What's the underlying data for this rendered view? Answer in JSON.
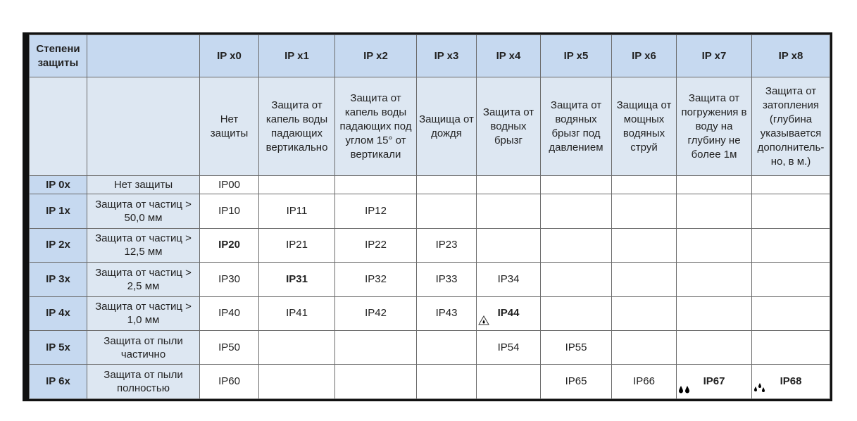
{
  "header": {
    "corner": "Степени защиты",
    "blank": "",
    "columns": [
      "IP x0",
      "IP x1",
      "IP x2",
      "IP x3",
      "IP x4",
      "IP x5",
      "IP x6",
      "IP x7",
      "IP x8"
    ]
  },
  "descriptions": [
    "Нет защиты",
    "Защита от капель воды падающих вертикально",
    "Защита от капель воды падающих под углом 15° от вертикали",
    "Защища от дождя",
    "Защита от водных брызг",
    "Защита от водяных брызг под давлением",
    "Защища от мощных водяных струй",
    "Защита от погружения в воду на глубину не более 1м",
    "Защита от затопления (глубина указывается дополнитель-но, в м.)"
  ],
  "rows": [
    {
      "code": "IP 0x",
      "desc": "Нет защиты",
      "cells": [
        "IP00",
        "",
        "",
        "",
        "",
        "",
        "",
        "",
        ""
      ]
    },
    {
      "code": "IP 1x",
      "desc": "Защита от частиц > 50,0 мм",
      "cells": [
        "IP10",
        "IP11",
        "IP12",
        "",
        "",
        "",
        "",
        "",
        ""
      ]
    },
    {
      "code": "IP 2x",
      "desc": "Защита от частиц > 12,5 мм",
      "cells": [
        "IP20",
        "IP21",
        "IP22",
        "IP23",
        "",
        "",
        "",
        "",
        ""
      ]
    },
    {
      "code": "IP 3x",
      "desc": "Защита от частиц > 2,5 мм",
      "cells": [
        "IP30",
        "IP31",
        "IP32",
        "IP33",
        "IP34",
        "",
        "",
        "",
        ""
      ]
    },
    {
      "code": "IP 4x",
      "desc": "Защита от частиц > 1,0 мм",
      "cells": [
        "IP40",
        "IP41",
        "IP42",
        "IP43",
        "IP44",
        "",
        "",
        "",
        ""
      ]
    },
    {
      "code": "IP 5x",
      "desc": "Защита от пыли частично",
      "cells": [
        "IP50",
        "",
        "",
        "",
        "IP54",
        "IP55",
        "",
        "",
        ""
      ]
    },
    {
      "code": "IP 6x",
      "desc": "Защита от пыли полностью",
      "cells": [
        "IP60",
        "",
        "",
        "",
        "",
        "IP65",
        "IP66",
        "IP67",
        "IP68"
      ]
    }
  ],
  "bold_cells": [
    "IP20",
    "IP31",
    "IP44",
    "IP67",
    "IP68"
  ],
  "icons": {
    "IP44": "warning-drop-icon",
    "IP67": "two-drops-icon",
    "IP68": "three-drops-icon"
  }
}
